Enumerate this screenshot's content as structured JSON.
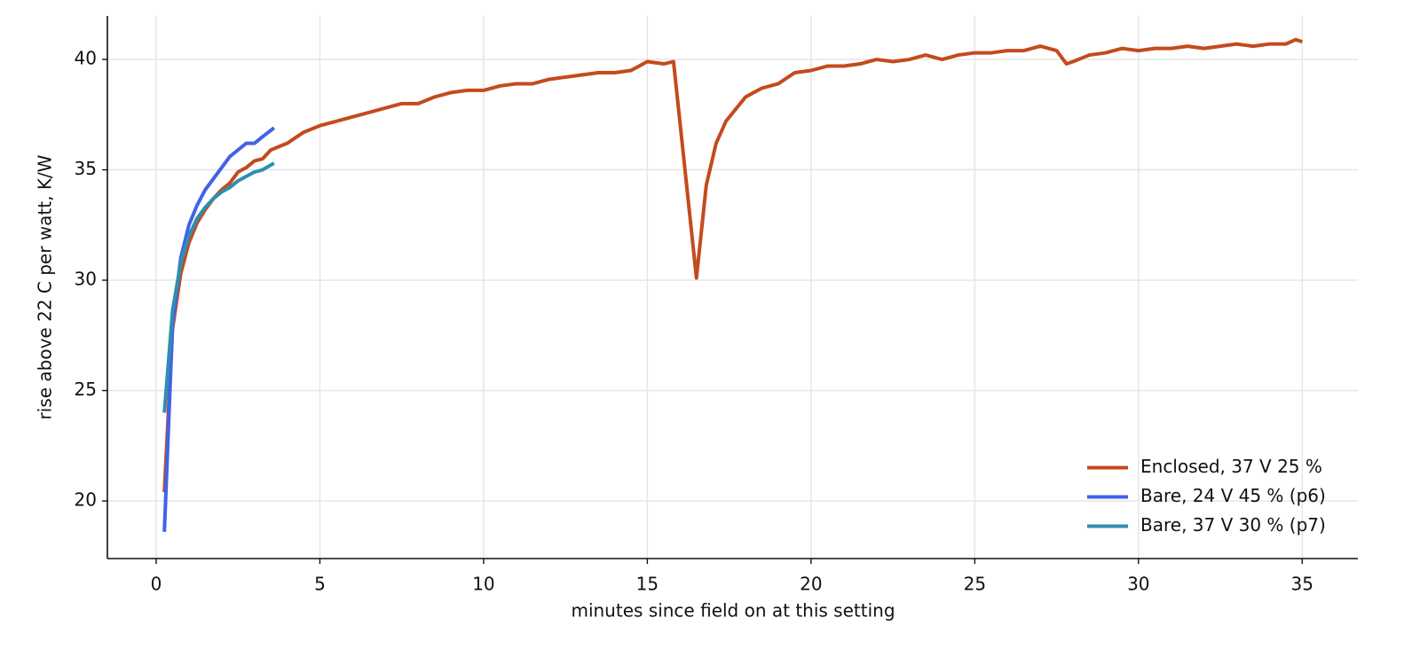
{
  "chart_data": {
    "type": "line",
    "xlabel": "minutes since field on at this setting",
    "ylabel": "rise above 22 C per watt, K/W",
    "xlim": [
      -1.49,
      36.7
    ],
    "ylim": [
      17.39,
      41.97
    ],
    "xticks": [
      0,
      5,
      10,
      15,
      20,
      25,
      30,
      35
    ],
    "yticks": [
      20,
      25,
      30,
      35,
      40
    ],
    "grid": true,
    "legend": "lower right",
    "series": [
      {
        "name": "Enclosed, 37 V 25 %",
        "color": "#c44a1e",
        "x": [
          0.25,
          0.5,
          0.75,
          1.0,
          1.25,
          1.5,
          1.75,
          2.0,
          2.25,
          2.5,
          2.75,
          3.0,
          3.25,
          3.5,
          4,
          4.5,
          5,
          5.5,
          6,
          6.5,
          7,
          7.5,
          8,
          8.5,
          9,
          9.5,
          10,
          10.5,
          11,
          11.5,
          12,
          12.5,
          13,
          13.5,
          14,
          14.5,
          15,
          15.5,
          15.8,
          16.5,
          16.8,
          17.1,
          17.4,
          18,
          18.5,
          19,
          19.5,
          20,
          20.5,
          21,
          21.5,
          22,
          22.5,
          23,
          23.5,
          24,
          24.5,
          25,
          25.5,
          26,
          26.5,
          27,
          27.5,
          27.8,
          28,
          28.5,
          29,
          29.5,
          30,
          30.5,
          31,
          31.5,
          32,
          32.5,
          33,
          33.5,
          34,
          34.5,
          34.8,
          35
        ],
        "values": [
          20.4,
          27.8,
          30.3,
          31.7,
          32.6,
          33.2,
          33.7,
          34.1,
          34.4,
          34.9,
          35.1,
          35.4,
          35.5,
          35.9,
          36.2,
          36.7,
          37.0,
          37.2,
          37.4,
          37.6,
          37.8,
          38.0,
          38.0,
          38.3,
          38.5,
          38.6,
          38.6,
          38.8,
          38.9,
          38.9,
          39.1,
          39.2,
          39.3,
          39.4,
          39.4,
          39.5,
          39.9,
          39.8,
          39.9,
          30.1,
          34.3,
          36.2,
          37.2,
          38.3,
          38.7,
          38.9,
          39.4,
          39.5,
          39.7,
          39.7,
          39.8,
          40.0,
          39.9,
          40.0,
          40.2,
          40.0,
          40.2,
          40.3,
          40.3,
          40.4,
          40.4,
          40.6,
          40.4,
          39.8,
          39.9,
          40.2,
          40.3,
          40.5,
          40.4,
          40.5,
          40.5,
          40.6,
          40.5,
          40.6,
          40.7,
          40.6,
          40.7,
          40.7,
          40.9,
          40.8
        ]
      },
      {
        "name": "Bare, 24 V 45 % (p6)",
        "color": "#4262e8",
        "x": [
          0.25,
          0.5,
          0.75,
          1.0,
          1.25,
          1.5,
          1.75,
          2.0,
          2.25,
          2.5,
          2.75,
          3.0,
          3.25,
          3.6
        ],
        "values": [
          18.6,
          28.0,
          31.0,
          32.5,
          33.4,
          34.1,
          34.6,
          35.1,
          35.6,
          35.9,
          36.2,
          36.2,
          36.5,
          36.9
        ]
      },
      {
        "name": "Bare, 37 V 30 % (p7)",
        "color": "#2e8fb0",
        "x": [
          0.25,
          0.5,
          0.75,
          1.0,
          1.25,
          1.5,
          1.75,
          2.0,
          2.25,
          2.5,
          2.75,
          3.0,
          3.25,
          3.6
        ],
        "values": [
          24.0,
          28.6,
          30.8,
          32.0,
          32.8,
          33.3,
          33.7,
          34.0,
          34.2,
          34.5,
          34.7,
          34.9,
          35.0,
          35.3
        ]
      }
    ]
  }
}
